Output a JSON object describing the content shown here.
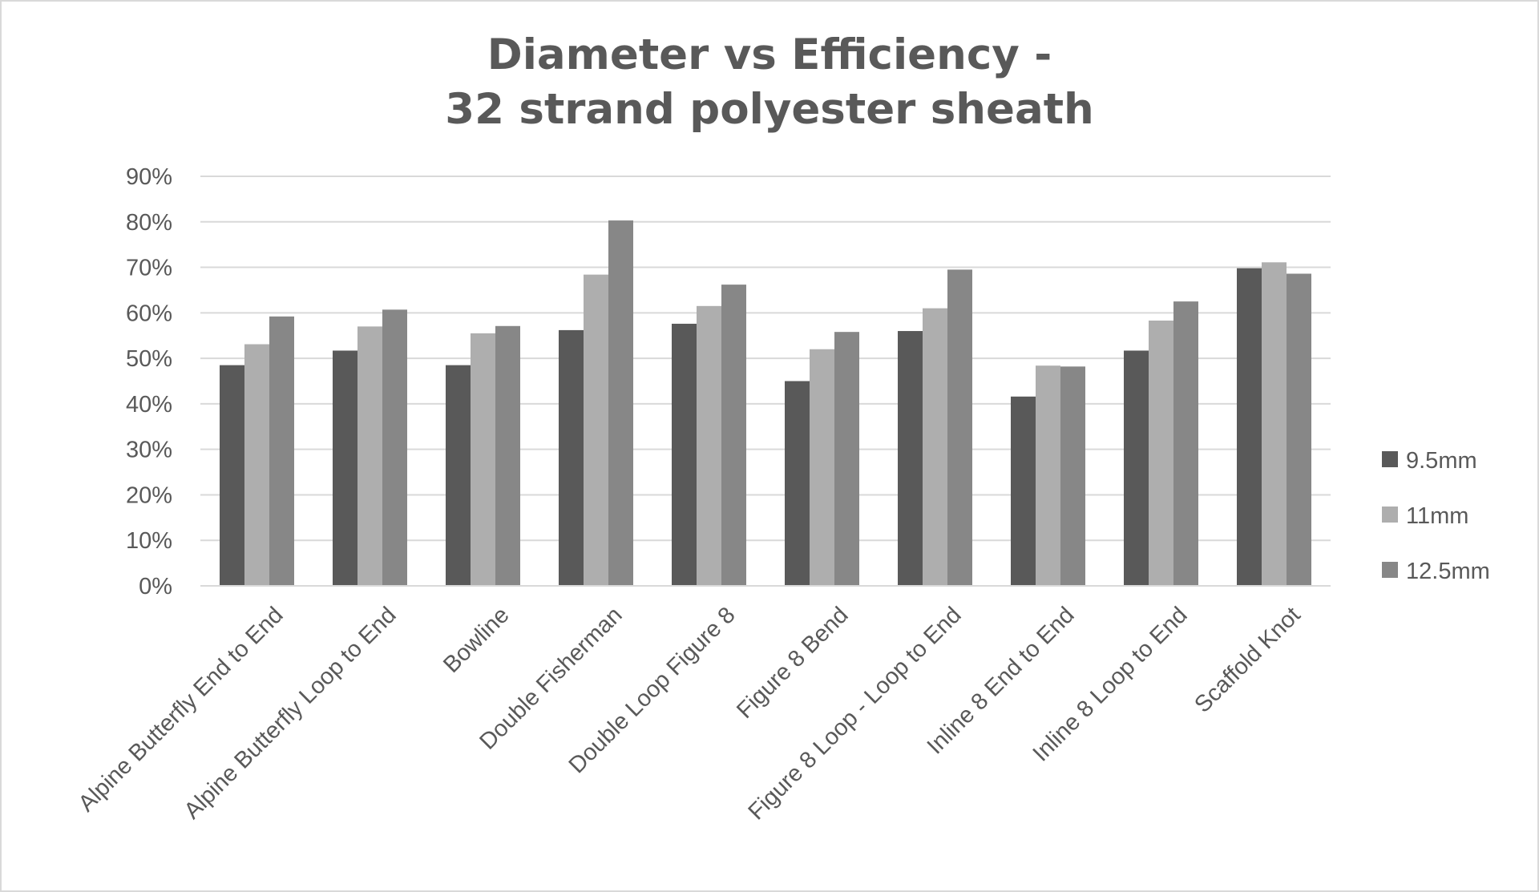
{
  "chart_data": {
    "type": "bar",
    "title_lines": [
      "Diameter vs Efficiency -",
      "32 strand polyester sheath"
    ],
    "categories": [
      "Alpine Butterfly End to End",
      "Alpine Butterfly Loop to End",
      "Bowline",
      "Double Fisherman",
      "Double Loop Figure 8",
      "Figure 8 Bend",
      "Figure 8 Loop - Loop to End",
      "Inline 8 End to End",
      "Inline 8 Loop to End",
      "Scaffold Knot"
    ],
    "series": [
      {
        "name": "9.5mm",
        "color": "#595959",
        "values": [
          48.5,
          51.7,
          48.5,
          56.2,
          57.6,
          45.0,
          56.0,
          41.6,
          51.7,
          69.8
        ]
      },
      {
        "name": "11mm",
        "color": "#aeaeae",
        "values": [
          53.1,
          57.0,
          55.5,
          68.4,
          61.5,
          52.0,
          61.0,
          48.4,
          58.3,
          71.1
        ]
      },
      {
        "name": "12.5mm",
        "color": "#878787",
        "values": [
          59.2,
          60.7,
          57.1,
          80.3,
          66.2,
          55.8,
          69.5,
          48.2,
          62.5,
          68.6
        ]
      }
    ],
    "yticks": [
      "0%",
      "10%",
      "20%",
      "30%",
      "40%",
      "50%",
      "60%",
      "70%",
      "80%",
      "90%"
    ],
    "ylim": [
      0,
      90
    ],
    "xlabel": "",
    "ylabel": "",
    "grid": true,
    "legend_position": "right"
  }
}
